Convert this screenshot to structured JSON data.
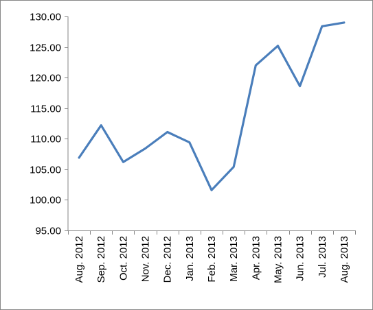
{
  "chart_data": {
    "type": "line",
    "categories": [
      "Aug. 2012",
      "Sep. 2012",
      "Oct. 2012",
      "Nov. 2012",
      "Dec. 2012",
      "Jan. 2013",
      "Feb. 2013",
      "Mar. 2013",
      "Apr. 2013",
      "May. 2013",
      "Jun. 2013",
      "Jul. 2013",
      "Aug. 2013"
    ],
    "series": [
      {
        "values": [
          106.9,
          112.2,
          106.2,
          108.4,
          111.1,
          109.4,
          101.6,
          105.4,
          122.0,
          125.2,
          118.6,
          128.4,
          129.0
        ],
        "color": "#4a7ebb"
      }
    ],
    "yticks": [
      "95.00",
      "100.00",
      "105.00",
      "110.00",
      "115.00",
      "120.00",
      "125.00",
      "130.00"
    ],
    "ylim": [
      95,
      130
    ],
    "grid": false,
    "legend": "none",
    "title": "",
    "xlabel": "",
    "ylabel": ""
  }
}
